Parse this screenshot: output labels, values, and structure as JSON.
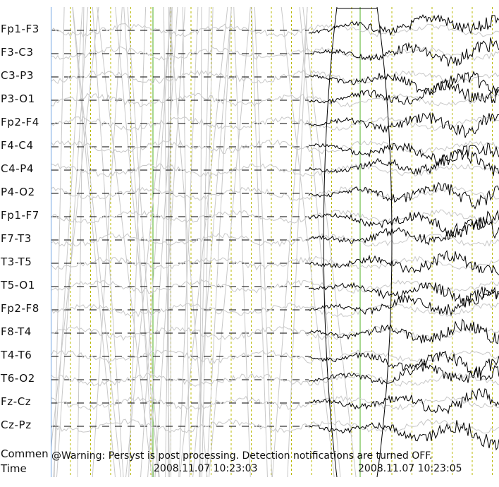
{
  "channels": [
    "Fp1-F3",
    "F3-C3",
    "C3-P3",
    "P3-O1",
    "Fp2-F4",
    "F4-C4",
    "C4-P4",
    "P4-O2",
    "Fp1-F7",
    "F7-T3",
    "T3-T5",
    "T5-O1",
    "Fp2-F8",
    "F8-T4",
    "T4-T6",
    "T6-O2",
    "Fz-Cz",
    "Cz-Pz"
  ],
  "footer": {
    "comment_label": "Commen",
    "time_label": "Time",
    "comment_text": "@Warning: Persyst is post processing. Detection notifications are turned OFF.",
    "timestamps": [
      "2008.11.07 10:23:03",
      "2008.11.07 10:23:05"
    ]
  },
  "colors": {
    "trace": "#000000",
    "ghost": "#c8c8c8",
    "baseline": "#000000",
    "grid_major": "#4caf20",
    "grid_minor": "#b8b800",
    "axis": "#6aa0e0"
  }
}
